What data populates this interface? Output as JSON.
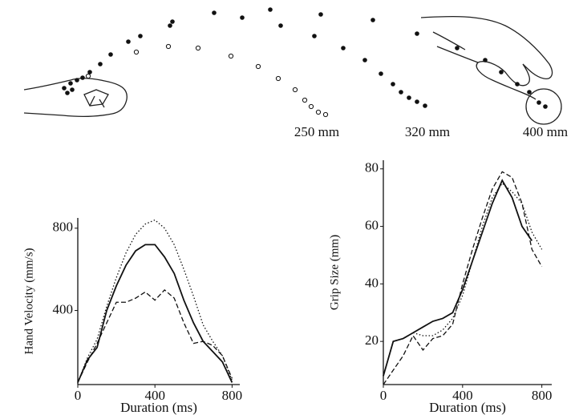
{
  "illustration": {
    "distance_labels": [
      "250 mm",
      "320 mm",
      "400 mm"
    ]
  },
  "chart_data": [
    {
      "type": "line",
      "xlabel": "Duration (ms)",
      "ylabel": "Hand Velocity (mm/s)",
      "x": [
        0,
        50,
        100,
        150,
        200,
        250,
        300,
        350,
        400,
        450,
        500,
        550,
        600,
        650,
        700,
        750,
        800
      ],
      "series": [
        {
          "color": "#111111",
          "dash": "dotted",
          "values": [
            50,
            170,
            260,
            420,
            560,
            680,
            770,
            820,
            840,
            800,
            720,
            600,
            470,
            330,
            250,
            180,
            60
          ]
        },
        {
          "color": "#111111",
          "dash": "solid",
          "values": [
            50,
            160,
            220,
            400,
            520,
            620,
            690,
            720,
            720,
            660,
            580,
            450,
            340,
            250,
            200,
            150,
            50
          ]
        },
        {
          "color": "#111111",
          "dash": "dashed",
          "values": [
            50,
            150,
            240,
            340,
            440,
            440,
            460,
            490,
            450,
            500,
            460,
            340,
            240,
            250,
            230,
            180,
            70
          ]
        }
      ],
      "xlim": [
        0,
        840
      ],
      "xticks": [
        0,
        400,
        800
      ],
      "ylim": [
        40,
        850
      ],
      "yticks": [
        400,
        800
      ],
      "grid": false
    },
    {
      "type": "line",
      "xlabel": "Duration (ms)",
      "ylabel": "Grip Size (mm)",
      "x": [
        0,
        50,
        100,
        150,
        200,
        250,
        300,
        350,
        400,
        450,
        500,
        550,
        600,
        650,
        700,
        750,
        800
      ],
      "series": [
        {
          "color": "#111111",
          "dash": "solid",
          "values": [
            8,
            20,
            21,
            23,
            25,
            27,
            28,
            30,
            38,
            48,
            58,
            68,
            76,
            70,
            60,
            55,
            null
          ]
        },
        {
          "color": "#111111",
          "dash": "dotted",
          "values": [
            8,
            20,
            21,
            23,
            22,
            22,
            24,
            28,
            36,
            48,
            60,
            70,
            75,
            72,
            68,
            58,
            52
          ]
        },
        {
          "color": "#111111",
          "dash": "dashed",
          "values": [
            5,
            10,
            15,
            22,
            17,
            21,
            22,
            26,
            40,
            52,
            63,
            73,
            79,
            77,
            68,
            52,
            46
          ]
        }
      ],
      "xlim": [
        0,
        850
      ],
      "xticks": [
        0,
        400,
        800
      ],
      "ylim": [
        5,
        83
      ],
      "yticks": [
        20,
        40,
        60,
        80
      ],
      "grid": false
    }
  ]
}
